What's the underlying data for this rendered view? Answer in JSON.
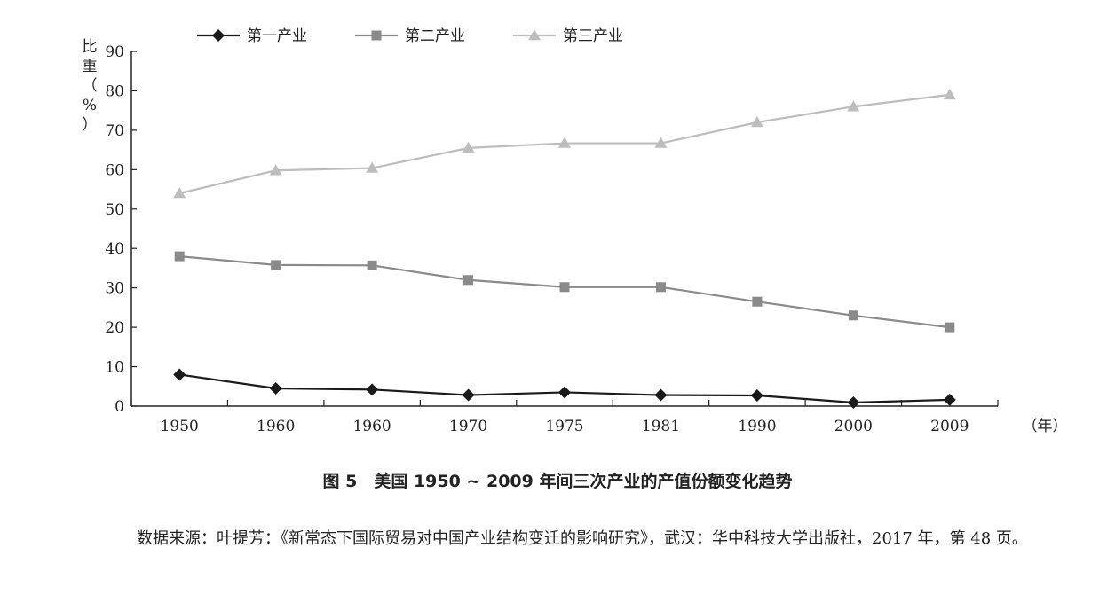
{
  "chart_data": {
    "type": "line",
    "categories": [
      "1950",
      "1960",
      "1960",
      "1970",
      "1975",
      "1981",
      "1990",
      "2000",
      "2009"
    ],
    "series": [
      {
        "name": "第一产业",
        "values": [
          8.0,
          4.5,
          4.2,
          2.8,
          3.5,
          2.8,
          2.7,
          0.9,
          1.6
        ],
        "color": "#1a1a1a",
        "marker": "diamond"
      },
      {
        "name": "第二产业",
        "values": [
          38.0,
          35.8,
          35.7,
          32.0,
          30.2,
          30.2,
          26.5,
          23.0,
          20.0
        ],
        "color": "#8a8a8a",
        "marker": "square"
      },
      {
        "name": "第三产业",
        "values": [
          54.0,
          59.8,
          60.4,
          65.5,
          66.7,
          66.7,
          72.0,
          76.0,
          79.0
        ],
        "color": "#bdbdbd",
        "marker": "triangle"
      }
    ],
    "ylabel": "比重（%）",
    "xunit": "（年）",
    "ylim": [
      0,
      90
    ],
    "yticks": [
      "0",
      "10",
      "20",
      "30",
      "40",
      "50",
      "60",
      "70",
      "80",
      "90"
    ],
    "grid": false,
    "legend_position": "top"
  },
  "caption": "图 5　美国 1950 ~ 2009 年间三次产业的产值份额变化趋势",
  "source_note": "数据来源：叶提芳：《新常态下国际贸易对中国产业结构变迁的影响研究》，武汉：华中科技大学出版社，2017 年，第 48 页。"
}
